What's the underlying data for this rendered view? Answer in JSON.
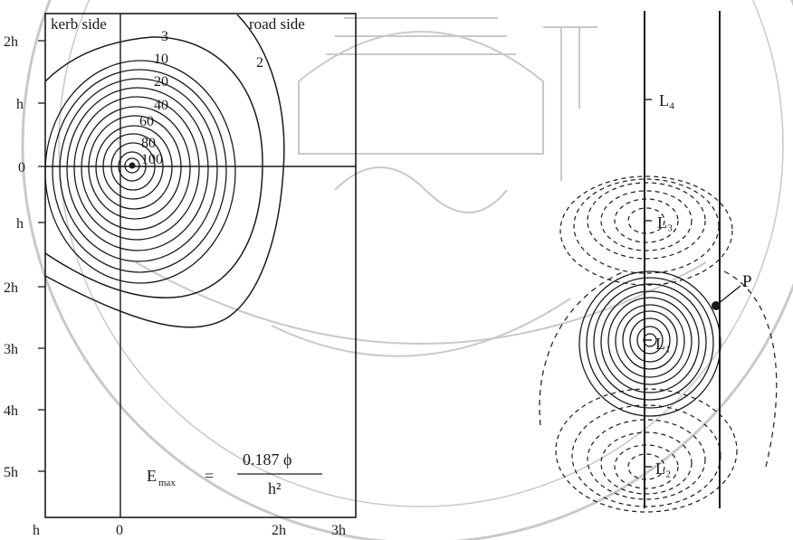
{
  "left_panel": {
    "corner_labels": {
      "kerb": "kerb side",
      "road": "road side"
    },
    "y_ticks": [
      "2h",
      "h",
      "0",
      "h",
      "2h",
      "3h",
      "4h",
      "5h"
    ],
    "x_ticks": [
      "h",
      "0",
      "2h",
      "3h"
    ],
    "contour_labels": [
      "3",
      "2",
      "10",
      "20",
      "40",
      "60",
      "80",
      "100"
    ],
    "formula": {
      "lhs_main": "E",
      "lhs_sub": "max",
      "eq": "=",
      "numerator": "0.187 ϕ",
      "denominator": "h²"
    }
  },
  "right_panel": {
    "luminaires": [
      "L₄",
      "L₃",
      "L₁",
      "L₂"
    ],
    "point_label": "P"
  },
  "colors": {
    "ink": "#1a1a1a",
    "watermark": "#c9c9c9",
    "background": "#ffffff"
  }
}
